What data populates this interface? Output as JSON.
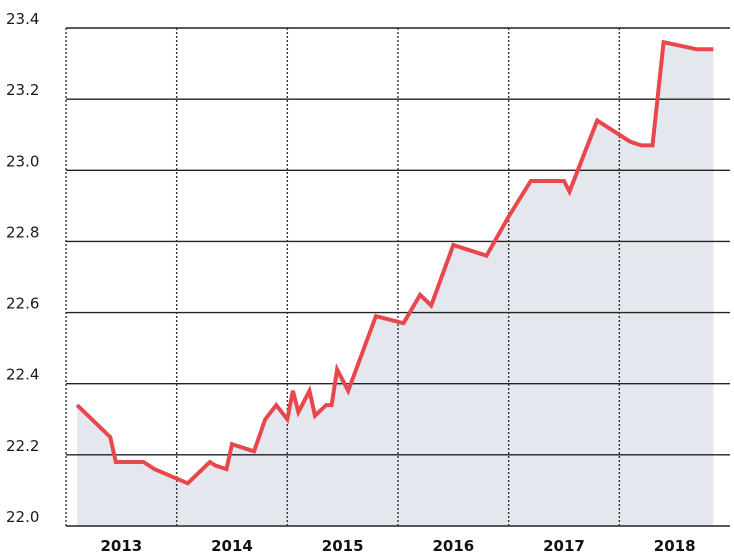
{
  "chart_data": {
    "type": "area",
    "title": "",
    "xlabel": "",
    "ylabel": "",
    "ylim": [
      22.0,
      23.4
    ],
    "yticks": [
      "22.0",
      "22.2",
      "22.4",
      "22.6",
      "22.8",
      "23.0",
      "23.2",
      "23.4"
    ],
    "year_labels": [
      "2013",
      "2014",
      "2015",
      "2016",
      "2017",
      "2018"
    ],
    "grid": "horizontal solid, vertical dotted year separators",
    "colors": {
      "line": "#e8474c",
      "fill": "#e4e7ee",
      "grid": "#222222"
    },
    "series": [
      {
        "x": [
          2012.6,
          2012.9,
          2012.95,
          2013.1,
          2013.2,
          2013.3,
          2013.6,
          2013.8,
          2013.85,
          2013.95,
          2014.0,
          2014.2,
          2014.3,
          2014.4,
          2014.5,
          2014.55,
          2014.6,
          2014.7,
          2014.75,
          2014.85,
          2014.9,
          2014.95,
          2015.05,
          2015.3,
          2015.55,
          2015.7,
          2015.8,
          2016.0,
          2016.3,
          2016.5,
          2016.7,
          2017.0,
          2017.05,
          2017.3,
          2017.6,
          2017.7,
          2017.8,
          2017.9,
          2018.2,
          2018.35
        ],
        "values": [
          22.34,
          22.25,
          22.18,
          22.18,
          22.18,
          22.16,
          22.12,
          22.18,
          22.17,
          22.16,
          22.23,
          22.21,
          22.3,
          22.34,
          22.3,
          22.38,
          22.32,
          22.38,
          22.31,
          22.34,
          22.34,
          22.44,
          22.38,
          22.59,
          22.57,
          22.65,
          22.62,
          22.79,
          22.76,
          22.87,
          22.97,
          22.97,
          22.94,
          23.14,
          23.08,
          23.07,
          23.07,
          23.36,
          23.34,
          23.34
        ]
      }
    ]
  }
}
